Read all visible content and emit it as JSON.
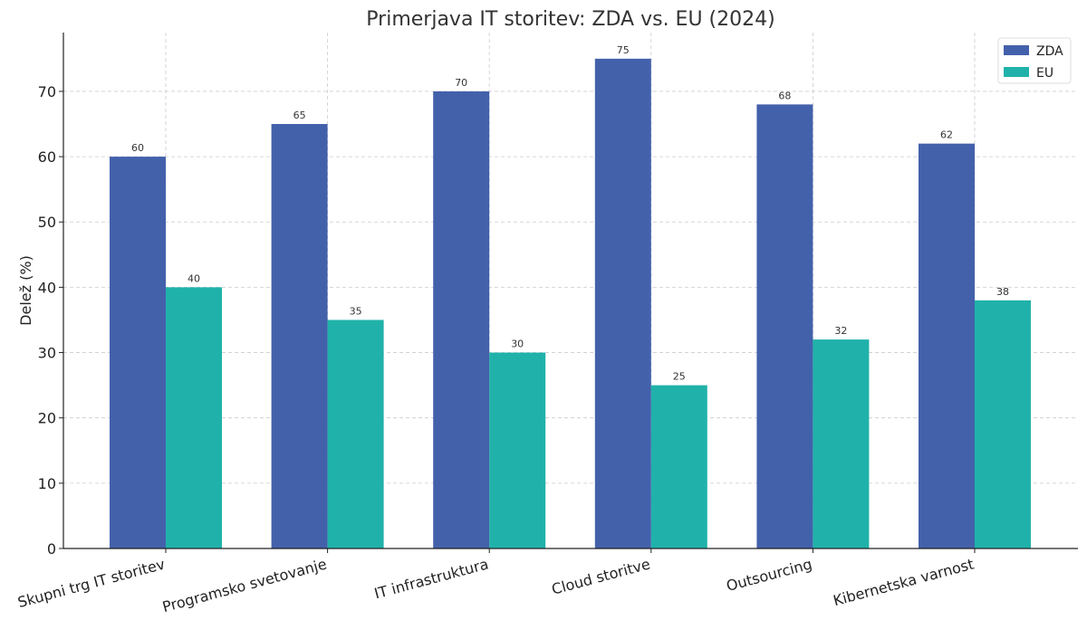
{
  "chart_data": {
    "type": "bar",
    "title": "Primerjava IT storitev: ZDA vs. EU (2024)",
    "xlabel": "",
    "ylabel": "Delež (%)",
    "ylim": [
      0,
      79
    ],
    "yticks": [
      0,
      10,
      20,
      30,
      40,
      50,
      60,
      70
    ],
    "grid": true,
    "legend_position": "top-right",
    "categories": [
      "Skupni trg IT storitev",
      "Programsko svetovanje",
      "IT infrastruktura",
      "Cloud storitve",
      "Outsourcing",
      "Kibernetska varnost"
    ],
    "series": [
      {
        "name": "ZDA",
        "color": "#4361ab",
        "values": [
          60,
          65,
          70,
          75,
          68,
          62
        ]
      },
      {
        "name": "EU",
        "color": "#20b2aa",
        "values": [
          40,
          35,
          30,
          25,
          32,
          38
        ]
      }
    ]
  }
}
